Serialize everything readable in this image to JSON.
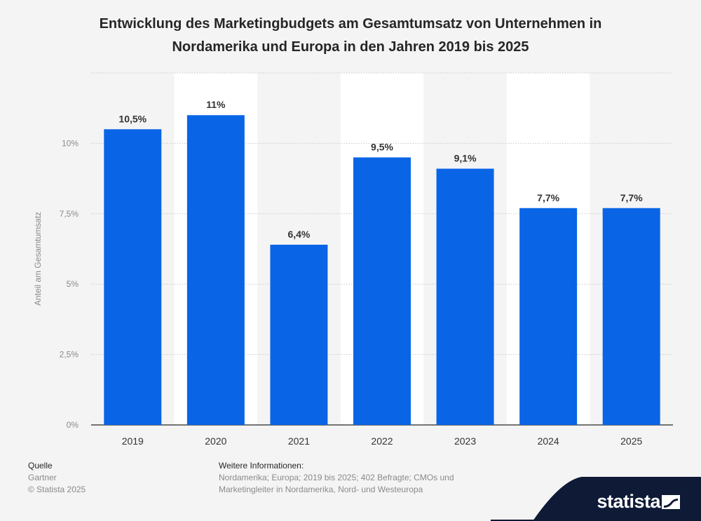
{
  "title": "Entwicklung des Marketingbudgets am Gesamtumsatz von Unternehmen in Nordamerika und Europa in den Jahren 2019 bis 2025",
  "source": {
    "heading": "Quelle",
    "lines": [
      "Gartner",
      "© Statista 2025"
    ]
  },
  "info": {
    "heading": "Weitere Informationen:",
    "text": "Nordamerika; Europa; 2019 bis 2025; 402 Befragte; CMOs und Marketingleiter in Nordamerika, Nord- und Westeuropa"
  },
  "brand": {
    "name": "statista"
  },
  "colors": {
    "bar": "#0a65e6",
    "band": "#ffffff",
    "background": "#f4f4f4",
    "brand_bg": "#0e1a36"
  },
  "chart_data": {
    "type": "bar",
    "categories": [
      "2019",
      "2020",
      "2021",
      "2022",
      "2023",
      "2024",
      "2025"
    ],
    "values": [
      10.5,
      11,
      6.4,
      9.5,
      9.1,
      7.7,
      7.7
    ],
    "data_labels": [
      "10,5%",
      "11%",
      "6,4%",
      "9,5%",
      "9,1%",
      "7,7%",
      "7,7%"
    ],
    "ylabel": "Anteil am Gesamtumsatz",
    "xlabel": "",
    "ylim": [
      0,
      12.5
    ],
    "yticks": [
      0,
      2.5,
      5,
      7.5,
      10
    ],
    "ytick_labels": [
      "0%",
      "2,5%",
      "5%",
      "7,5%",
      "10%"
    ],
    "grid": true
  }
}
